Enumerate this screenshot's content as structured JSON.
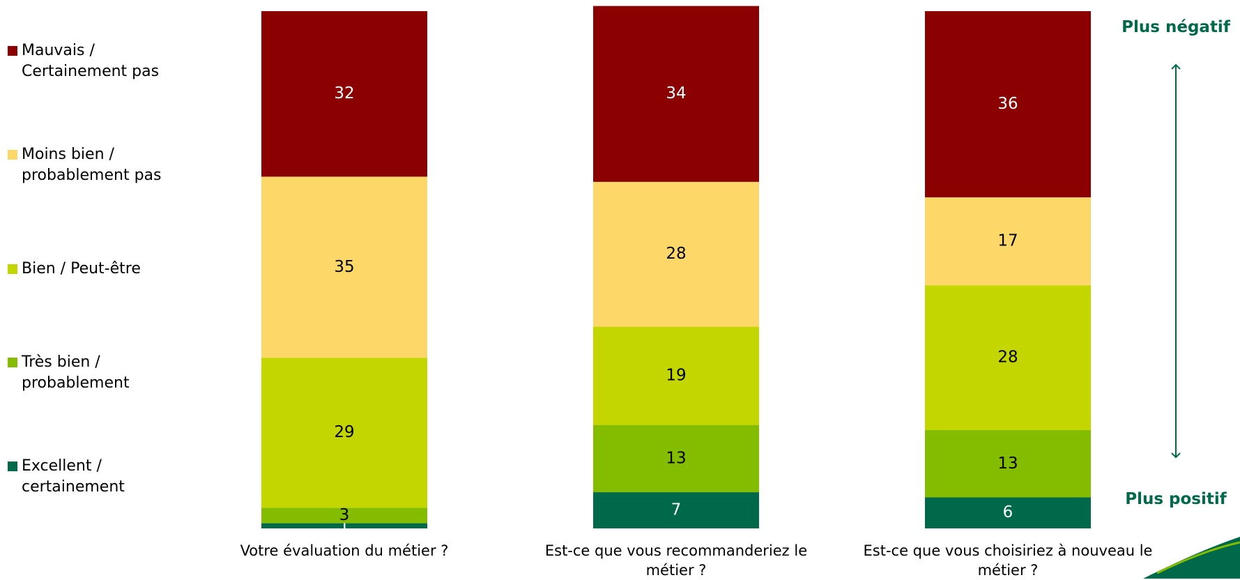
{
  "chart_data": {
    "type": "stacked-bar",
    "categories": [
      "Votre évaluation du métier ?",
      "Est-ce que vous recommanderiez le métier ?",
      "Est-ce que vous choisiriez à nouveau le métier ?"
    ],
    "series": [
      {
        "name": "Excellent / certainement",
        "color": "#00694a",
        "values": [
          1,
          7,
          6
        ]
      },
      {
        "name": "Très bien / probablement",
        "color": "#84bd00",
        "values": [
          3,
          13,
          13
        ]
      },
      {
        "name": "Bien / Peut-être",
        "color": "#c4d600",
        "values": [
          29,
          19,
          28
        ]
      },
      {
        "name": "Moins bien / probablement pas",
        "color": "#fdd868",
        "values": [
          35,
          28,
          17
        ]
      },
      {
        "name": "Mauvais / Certainement pas",
        "color": "#8b0000",
        "values": [
          32,
          34,
          36
        ]
      }
    ],
    "ylim": [
      0,
      100
    ],
    "annotations": [
      "Plus négatif",
      "Plus positif"
    ]
  }
}
